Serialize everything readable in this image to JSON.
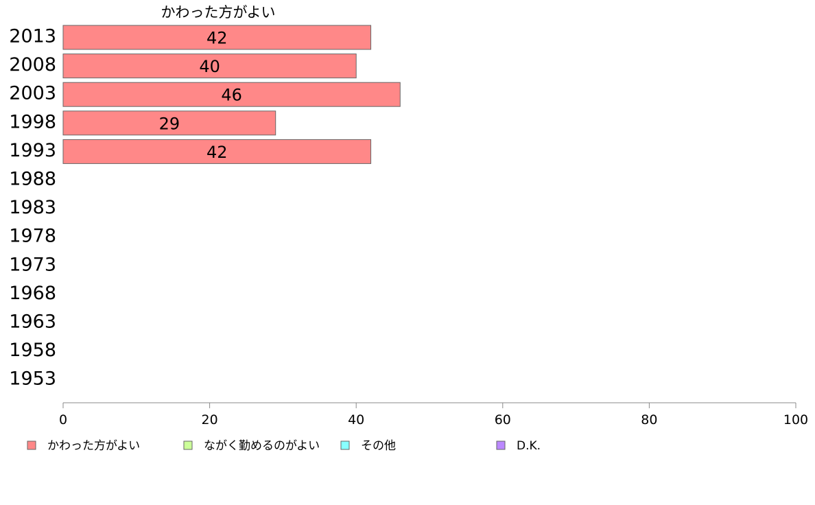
{
  "chart_data": {
    "type": "bar",
    "orientation": "horizontal",
    "title": "かわった方がよい",
    "categories": [
      "2013",
      "2008",
      "2003",
      "1998",
      "1993",
      "1988",
      "1983",
      "1978",
      "1973",
      "1968",
      "1963",
      "1958",
      "1953"
    ],
    "series": [
      {
        "name": "かわった方がよい",
        "color": "#ff8888",
        "values": [
          42,
          40,
          46,
          29,
          42,
          null,
          null,
          null,
          null,
          null,
          null,
          null,
          null
        ]
      }
    ],
    "xlim": [
      0,
      100
    ],
    "xticks": [
      0,
      20,
      40,
      60,
      80,
      100
    ],
    "grid": false,
    "legend_position": "bottom",
    "legend": [
      {
        "label": "かわった方がよい",
        "color": "#ff8888"
      },
      {
        "label": "ながく勤めるのがよい",
        "color": "#ccff99"
      },
      {
        "label": "その他",
        "color": "#88ffff"
      },
      {
        "label": "D.K.",
        "color": "#bb88ff"
      }
    ]
  }
}
